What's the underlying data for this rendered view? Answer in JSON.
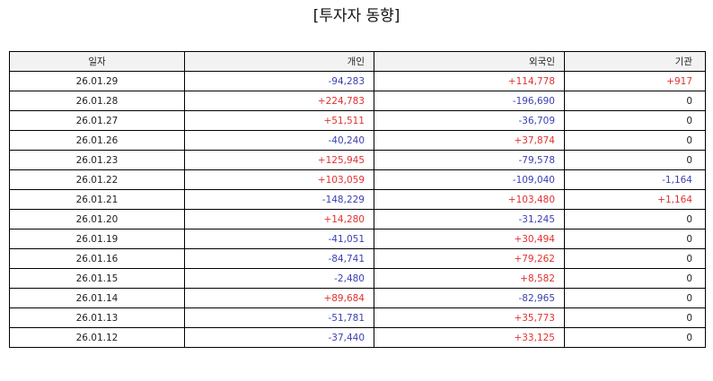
{
  "title": "[투자자 동향]",
  "colors": {
    "positive": "#e0322f",
    "negative": "#3a3fb3",
    "neutral": "#222222",
    "header_bg": "#f2f2f2"
  },
  "table": {
    "headers": [
      "일자",
      "개인",
      "외국인",
      "기관"
    ],
    "rows": [
      {
        "date": "26.01.29",
        "individual": "-94,283",
        "foreign": "+114,778",
        "institution": "+917"
      },
      {
        "date": "26.01.28",
        "individual": "+224,783",
        "foreign": "-196,690",
        "institution": "0"
      },
      {
        "date": "26.01.27",
        "individual": "+51,511",
        "foreign": "-36,709",
        "institution": "0"
      },
      {
        "date": "26.01.26",
        "individual": "-40,240",
        "foreign": "+37,874",
        "institution": "0"
      },
      {
        "date": "26.01.23",
        "individual": "+125,945",
        "foreign": "-79,578",
        "institution": "0"
      },
      {
        "date": "26.01.22",
        "individual": "+103,059",
        "foreign": "-109,040",
        "institution": "-1,164"
      },
      {
        "date": "26.01.21",
        "individual": "-148,229",
        "foreign": "+103,480",
        "institution": "+1,164"
      },
      {
        "date": "26.01.20",
        "individual": "+14,280",
        "foreign": "-31,245",
        "institution": "0"
      },
      {
        "date": "26.01.19",
        "individual": "-41,051",
        "foreign": "+30,494",
        "institution": "0"
      },
      {
        "date": "26.01.16",
        "individual": "-84,741",
        "foreign": "+79,262",
        "institution": "0"
      },
      {
        "date": "26.01.15",
        "individual": "-2,480",
        "foreign": "+8,582",
        "institution": "0"
      },
      {
        "date": "26.01.14",
        "individual": "+89,684",
        "foreign": "-82,965",
        "institution": "0"
      },
      {
        "date": "26.01.13",
        "individual": "-51,781",
        "foreign": "+35,773",
        "institution": "0"
      },
      {
        "date": "26.01.12",
        "individual": "-37,440",
        "foreign": "+33,125",
        "institution": "0"
      }
    ]
  }
}
